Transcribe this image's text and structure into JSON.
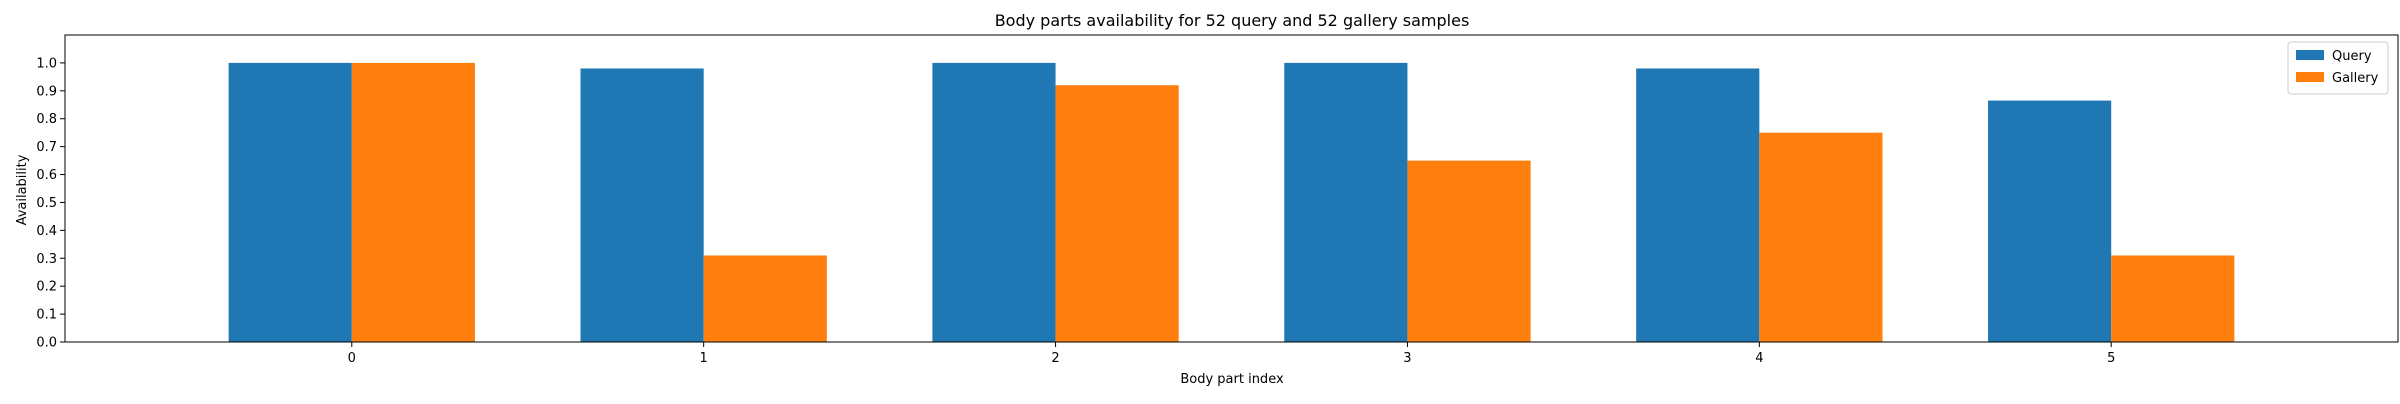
{
  "chart_data": {
    "type": "bar",
    "title": "Body parts availability for 52 query and 52 gallery samples",
    "xlabel": "Body part index",
    "ylabel": "Availability",
    "categories": [
      "0",
      "1",
      "2",
      "3",
      "4",
      "5"
    ],
    "series": [
      {
        "name": "Query",
        "color": "#1f77b4",
        "values": [
          1.0,
          0.98,
          1.0,
          1.0,
          0.98,
          0.865
        ]
      },
      {
        "name": "Gallery",
        "color": "#ff7f0e",
        "values": [
          1.0,
          0.31,
          0.92,
          0.65,
          0.75,
          0.31
        ]
      }
    ],
    "ylim": [
      0,
      1.1
    ],
    "yticks": [
      "0.0",
      "0.1",
      "0.2",
      "0.3",
      "0.4",
      "0.5",
      "0.6",
      "0.7",
      "0.8",
      "0.9",
      "1.0"
    ],
    "grid": false,
    "legend_position": "top-right"
  }
}
